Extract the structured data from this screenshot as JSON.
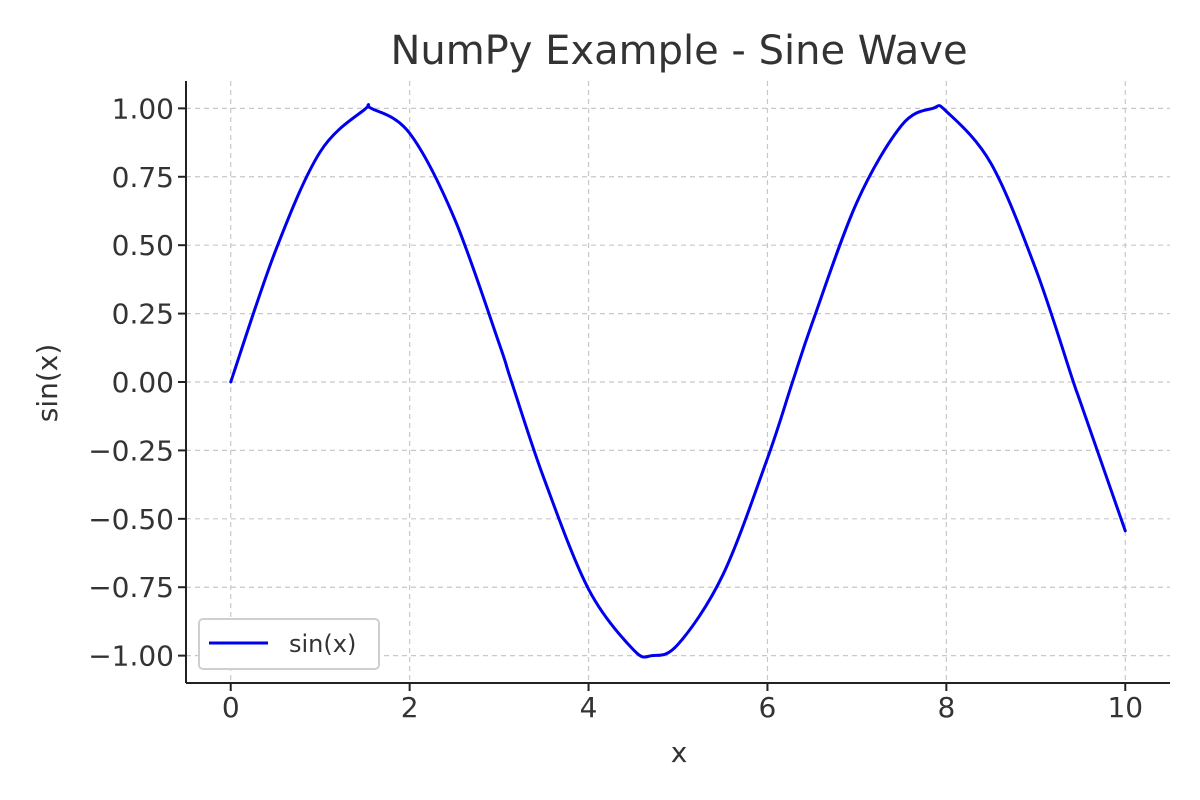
{
  "chart_data": {
    "type": "line",
    "title": "NumPy Example - Sine Wave",
    "xlabel": "x",
    "ylabel": "sin(x)",
    "xlim": [
      -0.5,
      10.5
    ],
    "ylim": [
      -1.1,
      1.1
    ],
    "grid": true,
    "legend_position": "lower-left",
    "x_ticks": [
      0,
      2,
      4,
      6,
      8,
      10
    ],
    "x_tick_labels": [
      "0",
      "2",
      "4",
      "6",
      "8",
      "10"
    ],
    "y_ticks": [
      1.0,
      0.75,
      0.5,
      0.25,
      0.0,
      -0.25,
      -0.5,
      -0.75,
      -1.0
    ],
    "y_tick_labels": [
      "1.00",
      "0.75",
      "0.50",
      "0.25",
      "0.00",
      "−0.25",
      "−0.50",
      "−0.75",
      "−1.00"
    ],
    "series": [
      {
        "name": "sin(x)",
        "color": "#0000ee",
        "x": [
          0,
          0.5,
          1,
          1.5,
          1.57,
          2,
          2.5,
          3,
          3.14,
          3.5,
          4,
          4.5,
          4.71,
          5,
          5.5,
          6,
          6.28,
          6.5,
          7,
          7.5,
          7.85,
          8,
          8.5,
          9,
          9.42,
          9.5,
          10
        ],
        "y": [
          0,
          0.479,
          0.841,
          0.997,
          1.0,
          0.909,
          0.598,
          0.141,
          0.0,
          -0.351,
          -0.757,
          -0.978,
          -1.0,
          -0.959,
          -0.706,
          -0.279,
          0.0,
          0.215,
          0.657,
          0.938,
          1.0,
          0.989,
          0.798,
          0.412,
          0.0,
          -0.075,
          -0.544
        ]
      }
    ]
  }
}
